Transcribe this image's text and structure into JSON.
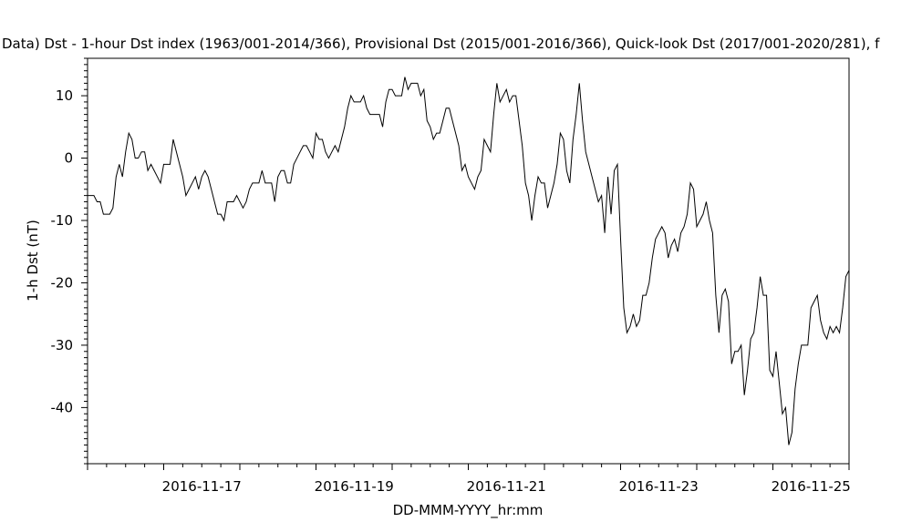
{
  "chart_data": {
    "type": "line",
    "title": "Data)  Dst - 1-hour Dst index (1963/001-2014/366), Provisional Dst (2015/001-2016/366), Quick-look Dst (2017/001-2020/281), f",
    "xlabel": "DD-MMM-YYYY_hr:mm",
    "ylabel": "1-h Dst (nT)",
    "x_start": "2016-11-16T00:00",
    "x_step_hours": 1,
    "xlim": [
      "2016-11-16T00:00",
      "2016-11-26T00:00"
    ],
    "ylim": [
      -49,
      16
    ],
    "x_ticks": [
      "2016-11-17",
      "2016-11-19",
      "2016-11-21",
      "2016-11-23",
      "2016-11-25"
    ],
    "y_ticks": [
      10,
      0,
      -10,
      -20,
      -30,
      -40
    ],
    "grid": false,
    "series": [
      {
        "values": [
          -6,
          -6,
          -6,
          -7,
          -7,
          -9,
          -9,
          -9,
          -8,
          -3,
          -1,
          -3,
          1,
          4,
          3,
          0,
          0,
          1,
          1,
          -2,
          -1,
          -2,
          -3,
          -4,
          -1,
          -1,
          -1,
          3,
          1,
          -1,
          -3,
          -6,
          -5,
          -4,
          -3,
          -5,
          -3,
          -2,
          -3,
          -5,
          -7,
          -9,
          -9,
          -10,
          -7,
          -7,
          -7,
          -6,
          -7,
          -8,
          -7,
          -5,
          -4,
          -4,
          -4,
          -2,
          -4,
          -4,
          -4,
          -7,
          -3,
          -2,
          -2,
          -4,
          -4,
          -1,
          0,
          1,
          2,
          2,
          1,
          0,
          4,
          3,
          3,
          1,
          0,
          1,
          2,
          1,
          3,
          5,
          8,
          10,
          9,
          9,
          9,
          10,
          8,
          7,
          7,
          7,
          7,
          5,
          9,
          11,
          11,
          10,
          10,
          10,
          13,
          11,
          12,
          12,
          12,
          10,
          11,
          6,
          5,
          3,
          4,
          4,
          6,
          8,
          8,
          6,
          4,
          2,
          -2,
          -1,
          -3,
          -4,
          -5,
          -3,
          -2,
          3,
          2,
          1,
          7,
          12,
          9,
          10,
          11,
          9,
          10,
          10,
          6,
          2,
          -4,
          -6,
          -10,
          -6,
          -3,
          -4,
          -4,
          -8,
          -6,
          -4,
          -1,
          4,
          3,
          -2,
          -4,
          3,
          7,
          12,
          6,
          1,
          -1,
          -3,
          -5,
          -7,
          -6,
          -12,
          -3,
          -9,
          -2,
          -1,
          -13,
          -24,
          -28,
          -27,
          -25,
          -27,
          -26,
          -22,
          -22,
          -20,
          -16,
          -13,
          -12,
          -11,
          -12,
          -16,
          -14,
          -13,
          -15,
          -12,
          -11,
          -9,
          -4,
          -5,
          -11,
          -10,
          -9,
          -7,
          -10,
          -12,
          -22,
          -28,
          -22,
          -21,
          -23,
          -33,
          -31,
          -31,
          -30,
          -38,
          -34,
          -29,
          -28,
          -24,
          -19,
          -22,
          -22,
          -34,
          -35,
          -31,
          -36,
          -41,
          -40,
          -46,
          -44,
          -37,
          -33,
          -30,
          -30,
          -30,
          -24,
          -23,
          -22,
          -26,
          -28,
          -29,
          -27,
          -28,
          -27,
          -28,
          -24,
          -19,
          -18
        ]
      }
    ]
  }
}
